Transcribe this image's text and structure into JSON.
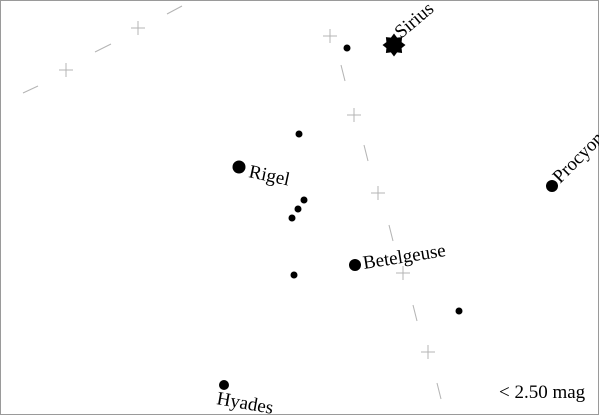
{
  "colors": {
    "background": "#ffffff",
    "stars": "#000000",
    "guide_lines": "#b4b4b4",
    "border": "#9a9a9a"
  },
  "magnitude_limit_label": "< 2.50 mag",
  "labels": {
    "sirius": "Sirius",
    "procyon": "Procyon",
    "rigel": "Rigel",
    "betelgeuse": "Betelgeuse",
    "hyades": "Hyades"
  },
  "icons": {
    "bright_star": "eight-point-star-icon",
    "star": "filled-circle-icon"
  }
}
